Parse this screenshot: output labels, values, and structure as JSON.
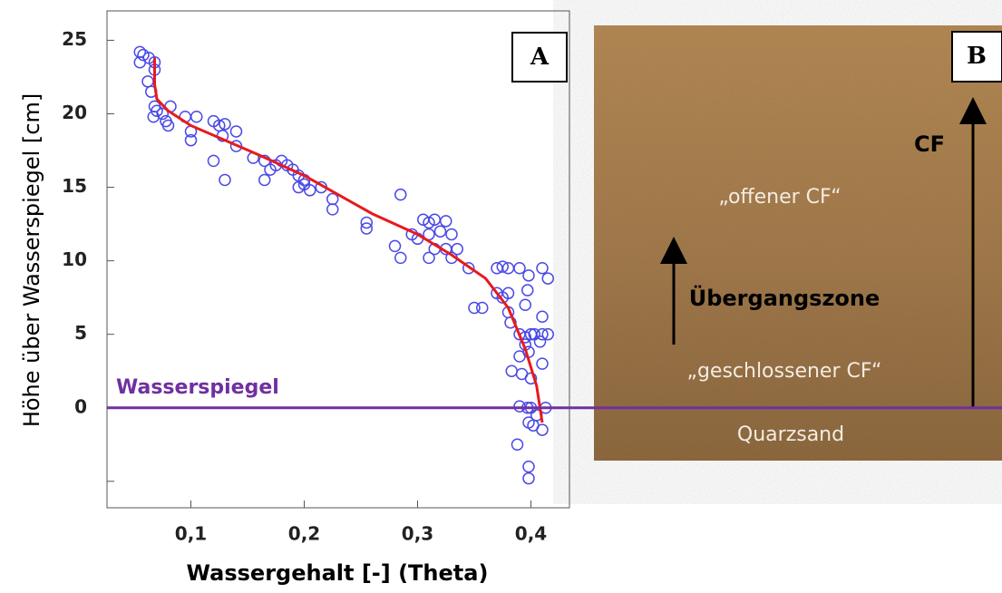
{
  "chart_data": {
    "type": "scatter",
    "xlabel": "Wassergehalt [-] (Theta)",
    "ylabel": "Höhe  über Wasserspiegel [cm]",
    "panel_label": "A",
    "xlim": [
      0.026,
      0.434
    ],
    "ylim": [
      -6.8,
      27
    ],
    "xticks": [
      {
        "value": 0.1,
        "label": "0,1"
      },
      {
        "value": 0.2,
        "label": "0,2"
      },
      {
        "value": 0.3,
        "label": "0,3"
      },
      {
        "value": 0.4,
        "label": "0,4"
      }
    ],
    "yticks": [
      {
        "value": -5,
        "label": null
      },
      0,
      5,
      10,
      15,
      20,
      25
    ],
    "water_level": {
      "label": "Wasserspiegel",
      "value": 0,
      "color": "#7030a0"
    },
    "series": [
      {
        "type": "scatter",
        "color": "#4a4ae6",
        "x": [
          0.055,
          0.058,
          0.055,
          0.063,
          0.068,
          0.068,
          0.062,
          0.065,
          0.068,
          0.07,
          0.067,
          0.075,
          0.078,
          0.082,
          0.08,
          0.095,
          0.1,
          0.105,
          0.1,
          0.12,
          0.125,
          0.13,
          0.128,
          0.14,
          0.14,
          0.12,
          0.13,
          0.155,
          0.165,
          0.17,
          0.175,
          0.18,
          0.185,
          0.19,
          0.165,
          0.195,
          0.2,
          0.195,
          0.205,
          0.2,
          0.215,
          0.225,
          0.225,
          0.255,
          0.255,
          0.285,
          0.28,
          0.285,
          0.295,
          0.305,
          0.31,
          0.31,
          0.315,
          0.325,
          0.32,
          0.33,
          0.3,
          0.31,
          0.315,
          0.325,
          0.335,
          0.33,
          0.345,
          0.35,
          0.357,
          0.37,
          0.375,
          0.38,
          0.37,
          0.375,
          0.38,
          0.38,
          0.382,
          0.39,
          0.398,
          0.397,
          0.395,
          0.39,
          0.395,
          0.4,
          0.403,
          0.395,
          0.39,
          0.398,
          0.383,
          0.392,
          0.4,
          0.41,
          0.415,
          0.41,
          0.41,
          0.415,
          0.408,
          0.41,
          0.39,
          0.397,
          0.4,
          0.405,
          0.398,
          0.402,
          0.41,
          0.413,
          0.388,
          0.398,
          0.398
        ],
        "values": [
          24.2,
          24,
          23.5,
          23.8,
          23.5,
          23,
          22.2,
          21.5,
          20.5,
          20.2,
          19.8,
          20,
          19.5,
          20.5,
          19.2,
          19.8,
          18.8,
          19.8,
          18.2,
          19.5,
          19.2,
          19.3,
          18.5,
          18.8,
          17.8,
          16.8,
          15.5,
          17,
          16.8,
          16.2,
          16.5,
          16.8,
          16.5,
          16.2,
          15.5,
          15.8,
          15.5,
          15,
          14.8,
          15.2,
          15,
          14.2,
          13.5,
          12.6,
          12.2,
          14.5,
          11,
          10.2,
          11.8,
          12.8,
          12.6,
          11.8,
          12.8,
          12.7,
          12,
          11.8,
          11.5,
          10.2,
          10.8,
          10.8,
          10.8,
          10.2,
          9.5,
          6.8,
          6.8,
          9.5,
          9.6,
          9.5,
          7.8,
          7.5,
          7.8,
          6.5,
          5.8,
          9.5,
          9,
          8,
          7,
          5,
          4.8,
          5,
          5,
          4.3,
          3.5,
          3.8,
          2.5,
          2.3,
          2,
          9.5,
          8.8,
          6.2,
          5,
          5,
          4.5,
          3,
          0.1,
          0,
          0,
          -0.5,
          -1,
          -1.2,
          -1.5,
          0,
          -2.5,
          -4,
          -4.8
        ]
      },
      {
        "type": "line",
        "color": "#e8191e",
        "x": [
          0.068,
          0.068,
          0.07,
          0.08,
          0.1,
          0.13,
          0.16,
          0.2,
          0.23,
          0.26,
          0.3,
          0.33,
          0.36,
          0.38,
          0.395,
          0.405,
          0.41
        ],
        "values": [
          23.8,
          22,
          21,
          20.2,
          19.2,
          18.2,
          17.2,
          15.8,
          14.5,
          13.2,
          11.8,
          10.4,
          8.8,
          6.8,
          4,
          1.5,
          -1
        ]
      }
    ]
  },
  "photo_panel": {
    "panel_label": "B",
    "arrow_label": "CF",
    "upper_zone": "„offener CF“",
    "transition": "Übergangszone",
    "lower_zone": "„geschlossener CF“",
    "base": "Quarzsand"
  }
}
